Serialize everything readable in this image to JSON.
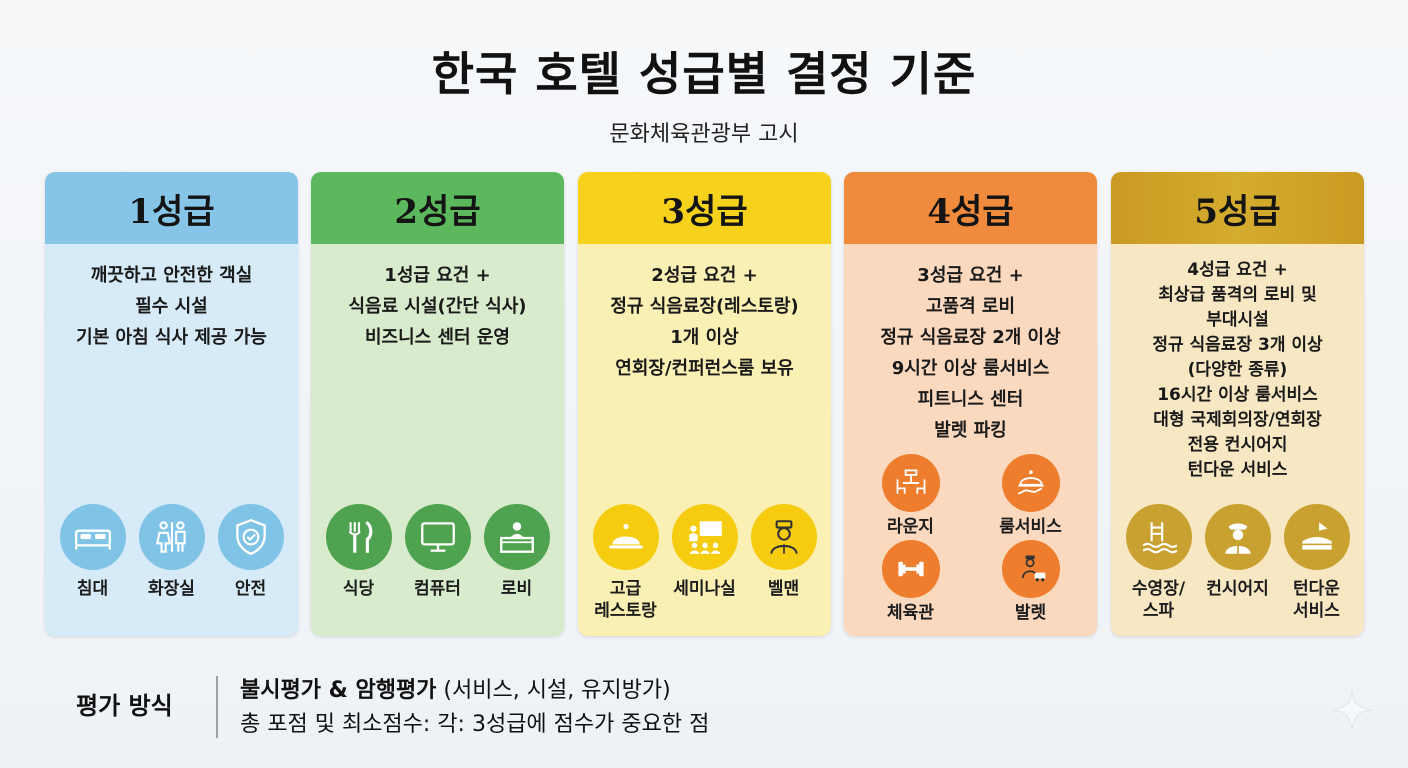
{
  "title": "한국 호텔 성급별 결정 기준",
  "subtitle": "문화체육관광부 고시",
  "colors": {
    "grade1_header": "#86c5e8",
    "grade1_body": "#d6ebf7",
    "grade1_icon": "#7fc3e6",
    "grade2_header": "#5cb85c",
    "grade2_body": "#d8eccd",
    "grade2_icon": "#4fa24f",
    "grade3_header": "#f7d21c",
    "grade3_body": "#fbf0b4",
    "grade3_icon": "#f5cc10",
    "grade4_header": "#f08a3c",
    "grade4_body": "#fbd9bf",
    "grade4_icon": "#ee7e2d",
    "grade5_header": "#d4ac2e",
    "grade5_body": "#f7e8c3",
    "grade5_icon": "#c9a131"
  },
  "grades": [
    {
      "name": "1성급",
      "requirements": [
        "깨끗하고 안전한 객실",
        "필수 시설",
        "기본 아침 식사 제공 가능"
      ],
      "icons": [
        {
          "icon": "bed-icon",
          "label": "침대"
        },
        {
          "icon": "restroom-icon",
          "label": "화장실"
        },
        {
          "icon": "shield-check-icon",
          "label": "안전"
        }
      ]
    },
    {
      "name": "2성급",
      "requirements": [
        "1성급 요건 +",
        "식음료 시설(간단 식사)",
        "비즈니스 센터 운영"
      ],
      "icons": [
        {
          "icon": "fork-knife-icon",
          "label": "식당"
        },
        {
          "icon": "computer-icon",
          "label": "컴퓨터"
        },
        {
          "icon": "reception-desk-icon",
          "label": "로비"
        }
      ]
    },
    {
      "name": "3성급",
      "requirements": [
        "2성급 요건 +",
        "정규 식음료장(레스토랑)",
        "1개 이상",
        "연회장/컨퍼런스룸 보유"
      ],
      "icons": [
        {
          "icon": "cloche-icon",
          "label": "고급\n레스토랑"
        },
        {
          "icon": "seminar-icon",
          "label": "세미나실"
        },
        {
          "icon": "bellman-icon",
          "label": "벨맨"
        }
      ]
    },
    {
      "name": "4성급",
      "requirements": [
        "3성급 요건 +",
        "고품격 로비",
        "정규 식음료장 2개 이상",
        "9시간 이상 룸서비스",
        "피트니스 센터",
        "발렛 파킹"
      ],
      "icons": [
        {
          "icon": "lounge-icon",
          "label": "라운지"
        },
        {
          "icon": "room-service-icon",
          "label": "룸서비스"
        },
        {
          "icon": "dumbbell-icon",
          "label": "체육관"
        },
        {
          "icon": "valet-icon",
          "label": "발렛"
        }
      ]
    },
    {
      "name": "5성급",
      "requirements": [
        "4성급 요건 +",
        "최상급 품격의 로비 및",
        "부대시설",
        "정규 식음료장 3개 이상",
        "(다양한 종류)",
        "16시간 이상 룸서비스",
        "대형 국제회의장/연회장",
        "전용 컨시어지",
        "턴다운 서비스"
      ],
      "icons": [
        {
          "icon": "pool-icon",
          "label": "수영장/\n스파"
        },
        {
          "icon": "concierge-icon",
          "label": "컨시어지"
        },
        {
          "icon": "turndown-icon",
          "label": "턴다운\n서비스"
        }
      ]
    }
  ],
  "evaluation": {
    "label": "평가 방식",
    "line1_bold": "불시평가 & 암행평가",
    "line1_rest": " (서비스, 시설, 유지방가)",
    "line2": "총 포점 및 최소점수: 각: 3성급에 점수가 중요한 점"
  }
}
